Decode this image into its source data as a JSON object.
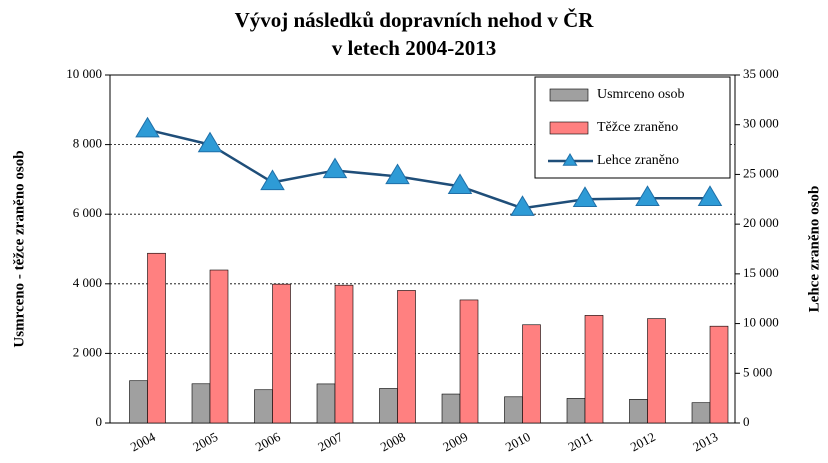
{
  "chart_data": {
    "type": "bar-line",
    "title": [
      "Vývoj následků dopravních nehod v ČR",
      "v letech 2004-2013"
    ],
    "y_label": "Usmrceno - těžce zraněno osob",
    "y2_label": "Lehce zraněno osob",
    "categories": [
      "2004",
      "2005",
      "2006",
      "2007",
      "2008",
      "2009",
      "2010",
      "2011",
      "2012",
      "2013"
    ],
    "series": [
      {
        "name": "Usmrceno osob",
        "type": "bar",
        "color": "#a0a0a0",
        "values": [
          1215,
          1127,
          956,
          1123,
          992,
          832,
          753,
          707,
          681,
          583
        ]
      },
      {
        "name": "Těžce zraněno",
        "type": "bar",
        "color": "#ff8080",
        "values": [
          4878,
          4396,
          3990,
          3960,
          3809,
          3536,
          2823,
          3092,
          3000,
          2782
        ]
      },
      {
        "name": "Lehce zraněno",
        "type": "line",
        "axis": "y2",
        "color": "#1f4e79",
        "marker_color": "#2e9bd6",
        "values": [
          29500,
          28000,
          24200,
          25400,
          24800,
          23800,
          21600,
          22500,
          22600,
          22600
        ]
      }
    ],
    "ylim": [
      0,
      10000
    ],
    "yticks": [
      0,
      {
        "value": 2000,
        "label": "2 000"
      },
      {
        "value": 4000,
        "label": "4 000"
      },
      {
        "value": 6000,
        "label": "6 000"
      },
      {
        "value": 8000,
        "label": "8 000"
      },
      {
        "value": 10000,
        "label": "10 000"
      }
    ],
    "y2lim": [
      0,
      35000
    ],
    "y2ticks": [
      0,
      {
        "value": 5000,
        "label": "5 000"
      },
      {
        "value": 10000,
        "label": "10 000"
      },
      {
        "value": 15000,
        "label": "15 000"
      },
      {
        "value": 20000,
        "label": "20 000"
      },
      {
        "value": 25000,
        "label": "25 000"
      },
      {
        "value": 30000,
        "label": "30 000"
      },
      {
        "value": 35000,
        "label": "35 000"
      }
    ],
    "grid": true,
    "legend": "upper right"
  }
}
